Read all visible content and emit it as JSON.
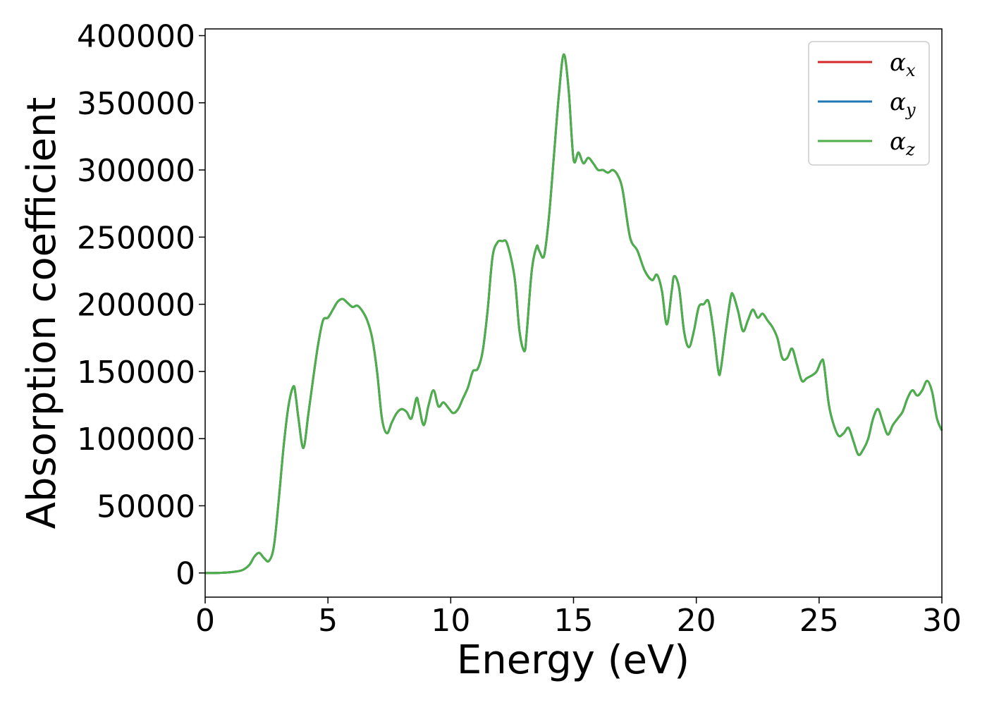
{
  "chart_data": {
    "type": "line",
    "xlabel": "Energy (eV)",
    "ylabel": "Absorption coefficient",
    "xlim": [
      0,
      30
    ],
    "ylim": [
      -18000,
      405000
    ],
    "xticks": [
      0,
      5,
      10,
      15,
      20,
      25,
      30
    ],
    "yticks": [
      0,
      50000,
      100000,
      150000,
      200000,
      250000,
      300000,
      350000,
      400000
    ],
    "grid": false,
    "legend_position": "top-right",
    "x": [
      0,
      0.5,
      1.0,
      1.5,
      1.8,
      2.0,
      2.2,
      2.4,
      2.6,
      2.8,
      3.0,
      3.2,
      3.4,
      3.6,
      3.7,
      3.8,
      4.0,
      4.2,
      4.4,
      4.6,
      4.8,
      5.0,
      5.2,
      5.4,
      5.6,
      5.8,
      6.0,
      6.2,
      6.4,
      6.6,
      6.8,
      7.0,
      7.2,
      7.4,
      7.6,
      7.8,
      8.0,
      8.2,
      8.4,
      8.6,
      8.7,
      8.9,
      9.1,
      9.3,
      9.5,
      9.7,
      9.9,
      10.1,
      10.3,
      10.5,
      10.7,
      10.9,
      11.1,
      11.3,
      11.5,
      11.7,
      11.9,
      12.1,
      12.3,
      12.6,
      12.8,
      13.0,
      13.1,
      13.3,
      13.5,
      13.6,
      13.8,
      14.0,
      14.2,
      14.4,
      14.6,
      14.8,
      15.0,
      15.2,
      15.4,
      15.6,
      15.8,
      16.0,
      16.2,
      16.4,
      16.6,
      16.8,
      17.0,
      17.3,
      17.6,
      17.9,
      18.2,
      18.4,
      18.6,
      18.8,
      19.0,
      19.1,
      19.3,
      19.5,
      19.7,
      19.9,
      20.1,
      20.3,
      20.5,
      20.7,
      20.9,
      21.0,
      21.2,
      21.4,
      21.5,
      21.7,
      21.9,
      22.1,
      22.3,
      22.5,
      22.7,
      22.9,
      23.1,
      23.3,
      23.5,
      23.7,
      23.9,
      24.1,
      24.3,
      24.5,
      24.7,
      24.9,
      25.1,
      25.2,
      25.4,
      25.6,
      25.8,
      26.0,
      26.2,
      26.4,
      26.6,
      26.8,
      27.0,
      27.2,
      27.4,
      27.6,
      27.8,
      28.0,
      28.2,
      28.4,
      28.6,
      28.8,
      29.0,
      29.2,
      29.4,
      29.6,
      29.8,
      30.0
    ],
    "series": [
      {
        "name": "αx",
        "base": "α",
        "sub": "x",
        "color": "#d62728",
        "values": [
          0,
          0,
          500,
          2000,
          6000,
          12000,
          15000,
          11000,
          9000,
          20000,
          55000,
          95000,
          125000,
          139000,
          130000,
          115000,
          93000,
          118000,
          145000,
          170000,
          188000,
          190000,
          196000,
          202000,
          204000,
          201000,
          198000,
          199000,
          195000,
          188000,
          175000,
          150000,
          115000,
          104000,
          112000,
          119000,
          122000,
          120000,
          115000,
          130000,
          125000,
          110000,
          125000,
          136000,
          124000,
          127000,
          123000,
          119000,
          122000,
          130000,
          138000,
          150000,
          152000,
          165000,
          195000,
          235000,
          246000,
          247000,
          245000,
          220000,
          180000,
          165000,
          180000,
          225000,
          243000,
          240000,
          236000,
          265000,
          310000,
          355000,
          386000,
          360000,
          308000,
          313000,
          305000,
          309000,
          305000,
          300000,
          300000,
          298000,
          300000,
          296000,
          285000,
          250000,
          240000,
          225000,
          218000,
          222000,
          210000,
          185000,
          210000,
          221000,
          212000,
          180000,
          168000,
          180000,
          198000,
          200000,
          202000,
          180000,
          150000,
          152000,
          180000,
          205000,
          207000,
          195000,
          180000,
          188000,
          196000,
          190000,
          193000,
          188000,
          183000,
          175000,
          160000,
          160000,
          167000,
          155000,
          143000,
          145000,
          147000,
          150000,
          158000,
          155000,
          125000,
          110000,
          102000,
          104000,
          108000,
          98000,
          88000,
          92000,
          100000,
          115000,
          122000,
          112000,
          103000,
          110000,
          115000,
          120000,
          130000,
          136000,
          132000,
          136000,
          143000,
          135000,
          115000,
          106000
        ]
      },
      {
        "name": "αy",
        "base": "α",
        "sub": "y",
        "color": "#1f77b4",
        "values": [
          0,
          0,
          500,
          2000,
          6000,
          12000,
          15000,
          11000,
          9000,
          20000,
          55000,
          95000,
          125000,
          139000,
          130000,
          115000,
          93000,
          118000,
          145000,
          170000,
          188000,
          190000,
          196000,
          202000,
          204000,
          201000,
          198000,
          199000,
          195000,
          188000,
          175000,
          150000,
          115000,
          104000,
          112000,
          119000,
          122000,
          120000,
          115000,
          130000,
          125000,
          110000,
          125000,
          136000,
          124000,
          127000,
          123000,
          119000,
          122000,
          130000,
          138000,
          150000,
          152000,
          165000,
          195000,
          235000,
          246000,
          247000,
          245000,
          220000,
          180000,
          165000,
          180000,
          225000,
          243000,
          240000,
          236000,
          265000,
          310000,
          355000,
          386000,
          360000,
          308000,
          313000,
          305000,
          309000,
          305000,
          300000,
          300000,
          298000,
          300000,
          296000,
          285000,
          250000,
          240000,
          225000,
          218000,
          222000,
          210000,
          185000,
          210000,
          221000,
          212000,
          180000,
          168000,
          180000,
          198000,
          200000,
          202000,
          180000,
          150000,
          152000,
          180000,
          205000,
          207000,
          195000,
          180000,
          188000,
          196000,
          190000,
          193000,
          188000,
          183000,
          175000,
          160000,
          160000,
          167000,
          155000,
          143000,
          145000,
          147000,
          150000,
          158000,
          155000,
          125000,
          110000,
          102000,
          104000,
          108000,
          98000,
          88000,
          92000,
          100000,
          115000,
          122000,
          112000,
          103000,
          110000,
          115000,
          120000,
          130000,
          136000,
          132000,
          136000,
          143000,
          135000,
          115000,
          106000
        ]
      },
      {
        "name": "αz",
        "base": "α",
        "sub": "z",
        "color": "#4daf4a",
        "values": [
          0,
          0,
          500,
          2000,
          6000,
          12000,
          15000,
          11000,
          9000,
          20000,
          55000,
          95000,
          125000,
          139000,
          130000,
          115000,
          93000,
          118000,
          145000,
          170000,
          188000,
          190000,
          196000,
          202000,
          204000,
          201000,
          198000,
          199000,
          195000,
          188000,
          175000,
          150000,
          115000,
          104000,
          112000,
          119000,
          122000,
          120000,
          115000,
          130000,
          125000,
          110000,
          125000,
          136000,
          124000,
          127000,
          123000,
          119000,
          122000,
          130000,
          138000,
          150000,
          152000,
          165000,
          195000,
          235000,
          246000,
          247000,
          245000,
          220000,
          180000,
          165000,
          180000,
          225000,
          243000,
          240000,
          236000,
          265000,
          310000,
          355000,
          386000,
          360000,
          308000,
          313000,
          305000,
          309000,
          305000,
          300000,
          300000,
          298000,
          300000,
          296000,
          285000,
          250000,
          240000,
          225000,
          218000,
          222000,
          210000,
          185000,
          210000,
          221000,
          212000,
          180000,
          168000,
          180000,
          198000,
          200000,
          202000,
          180000,
          150000,
          152000,
          180000,
          205000,
          207000,
          195000,
          180000,
          188000,
          196000,
          190000,
          193000,
          188000,
          183000,
          175000,
          160000,
          160000,
          167000,
          155000,
          143000,
          145000,
          147000,
          150000,
          158000,
          155000,
          125000,
          110000,
          102000,
          104000,
          108000,
          98000,
          88000,
          92000,
          100000,
          115000,
          122000,
          112000,
          103000,
          110000,
          115000,
          120000,
          130000,
          136000,
          132000,
          136000,
          143000,
          135000,
          115000,
          106000
        ]
      }
    ]
  }
}
